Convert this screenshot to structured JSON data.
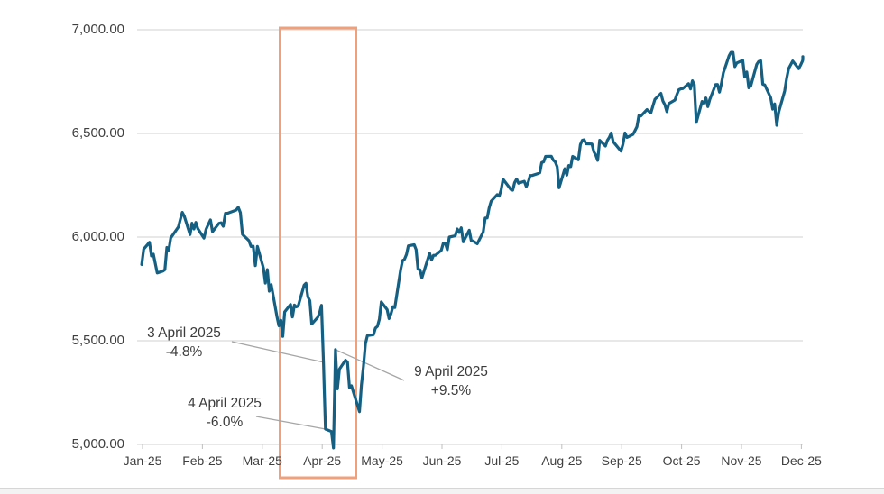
{
  "chart_data": {
    "type": "line",
    "x_axis": {
      "labels": [
        "Jan-25",
        "Feb-25",
        "Mar-25",
        "Apr-25",
        "May-25",
        "Jun-25",
        "Jul-25",
        "Aug-25",
        "Sep-25",
        "Oct-25",
        "Nov-25",
        "Dec-25"
      ]
    },
    "y_axis": {
      "min": 5000,
      "max": 7000,
      "tick_step": 500,
      "values": [
        7000,
        6500,
        6000,
        5500,
        5000
      ],
      "tick_labels": [
        "7,000.00",
        "6,500.00",
        "6,000.00",
        "5,500.00",
        "5,000.00"
      ]
    },
    "colors": {
      "line": "#156082",
      "grid": "#d9d9d9",
      "axis": "#bfbfbf",
      "leader": "#a6a6a6",
      "highlight_box": "#f0a17b",
      "label_text": "#3f3f3f"
    },
    "highlight": {
      "label": "Apr-25"
    },
    "annotations": [
      {
        "line1": "3 April 2025",
        "line2": "-4.8%",
        "target": {
          "date": "04-03",
          "value": 5396
        }
      },
      {
        "line1": "4 April 2025",
        "line2": "-6.0%",
        "target": {
          "date": "04-04",
          "value": 5074
        }
      },
      {
        "line1": "9 April 2025",
        "line2": "+9.5%",
        "target": {
          "date": "04-09",
          "value": 5457
        }
      }
    ],
    "points": [
      [
        "01-02",
        5868
      ],
      [
        "01-03",
        5942
      ],
      [
        "01-06",
        5975
      ],
      [
        "01-07",
        5909
      ],
      [
        "01-08",
        5918
      ],
      [
        "01-10",
        5827
      ],
      [
        "01-13",
        5836
      ],
      [
        "01-14",
        5843
      ],
      [
        "01-15",
        5950
      ],
      [
        "01-16",
        5937
      ],
      [
        "01-17",
        5996
      ],
      [
        "01-21",
        6049
      ],
      [
        "01-22",
        6086
      ],
      [
        "01-23",
        6119
      ],
      [
        "01-24",
        6101
      ],
      [
        "01-27",
        6012
      ],
      [
        "01-28",
        6067
      ],
      [
        "01-29",
        6039
      ],
      [
        "01-30",
        6071
      ],
      [
        "01-31",
        6041
      ],
      [
        "02-03",
        5995
      ],
      [
        "02-04",
        6038
      ],
      [
        "02-05",
        6061
      ],
      [
        "02-06",
        6083
      ],
      [
        "02-07",
        6026
      ],
      [
        "02-10",
        6066
      ],
      [
        "02-11",
        6069
      ],
      [
        "02-12",
        6052
      ],
      [
        "02-13",
        6115
      ],
      [
        "02-14",
        6115
      ],
      [
        "02-18",
        6130
      ],
      [
        "02-19",
        6144
      ],
      [
        "02-20",
        6118
      ],
      [
        "02-21",
        6013
      ],
      [
        "02-24",
        5983
      ],
      [
        "02-25",
        5955
      ],
      [
        "02-26",
        5956
      ],
      [
        "02-27",
        5862
      ],
      [
        "02-28",
        5955
      ],
      [
        "03-03",
        5850
      ],
      [
        "03-04",
        5778
      ],
      [
        "03-05",
        5843
      ],
      [
        "03-06",
        5739
      ],
      [
        "03-07",
        5770
      ],
      [
        "03-10",
        5615
      ],
      [
        "03-11",
        5572
      ],
      [
        "03-12",
        5599
      ],
      [
        "03-13",
        5521
      ],
      [
        "03-14",
        5639
      ],
      [
        "03-17",
        5675
      ],
      [
        "03-18",
        5615
      ],
      [
        "03-19",
        5672
      ],
      [
        "03-20",
        5663
      ],
      [
        "03-21",
        5668
      ],
      [
        "03-24",
        5768
      ],
      [
        "03-25",
        5777
      ],
      [
        "03-26",
        5712
      ],
      [
        "03-27",
        5693
      ],
      [
        "03-28",
        5581
      ],
      [
        "03-31",
        5612
      ],
      [
        "04-01",
        5633
      ],
      [
        "04-02",
        5671
      ],
      [
        "04-03",
        5396
      ],
      [
        "04-04",
        5074
      ],
      [
        "04-07",
        5062
      ],
      [
        "04-08",
        4983
      ],
      [
        "04-09",
        5457
      ],
      [
        "04-10",
        5268
      ],
      [
        "04-11",
        5363
      ],
      [
        "04-14",
        5406
      ],
      [
        "04-15",
        5397
      ],
      [
        "04-16",
        5275
      ],
      [
        "04-17",
        5283
      ],
      [
        "04-21",
        5158
      ],
      [
        "04-22",
        5288
      ],
      [
        "04-23",
        5376
      ],
      [
        "04-24",
        5485
      ],
      [
        "04-25",
        5525
      ],
      [
        "04-28",
        5529
      ],
      [
        "04-29",
        5561
      ],
      [
        "04-30",
        5569
      ],
      [
        "05-01",
        5604
      ],
      [
        "05-02",
        5687
      ],
      [
        "05-05",
        5650
      ],
      [
        "05-06",
        5607
      ],
      [
        "05-07",
        5631
      ],
      [
        "05-08",
        5664
      ],
      [
        "05-09",
        5660
      ],
      [
        "05-12",
        5844
      ],
      [
        "05-13",
        5887
      ],
      [
        "05-14",
        5893
      ],
      [
        "05-15",
        5916
      ],
      [
        "05-16",
        5958
      ],
      [
        "05-19",
        5963
      ],
      [
        "05-20",
        5940
      ],
      [
        "05-21",
        5845
      ],
      [
        "05-22",
        5842
      ],
      [
        "05-23",
        5803
      ],
      [
        "05-27",
        5922
      ],
      [
        "05-28",
        5889
      ],
      [
        "05-29",
        5912
      ],
      [
        "05-30",
        5912
      ],
      [
        "06-02",
        5936
      ],
      [
        "06-03",
        5970
      ],
      [
        "06-04",
        5971
      ],
      [
        "06-05",
        5939
      ],
      [
        "06-06",
        6000
      ],
      [
        "06-09",
        6006
      ],
      [
        "06-10",
        6039
      ],
      [
        "06-11",
        6022
      ],
      [
        "06-12",
        6045
      ],
      [
        "06-13",
        5977
      ],
      [
        "06-16",
        6033
      ],
      [
        "06-17",
        5983
      ],
      [
        "06-18",
        5981
      ],
      [
        "06-20",
        5968
      ],
      [
        "06-23",
        6025
      ],
      [
        "06-24",
        6092
      ],
      [
        "06-25",
        6092
      ],
      [
        "06-26",
        6141
      ],
      [
        "06-27",
        6173
      ],
      [
        "06-30",
        6205
      ],
      [
        "07-01",
        6198
      ],
      [
        "07-02",
        6227
      ],
      [
        "07-03",
        6279
      ],
      [
        "07-07",
        6230
      ],
      [
        "07-08",
        6226
      ],
      [
        "07-09",
        6263
      ],
      [
        "07-10",
        6280
      ],
      [
        "07-11",
        6260
      ],
      [
        "07-14",
        6269
      ],
      [
        "07-15",
        6244
      ],
      [
        "07-16",
        6264
      ],
      [
        "07-17",
        6297
      ],
      [
        "07-18",
        6297
      ],
      [
        "07-21",
        6306
      ],
      [
        "07-22",
        6310
      ],
      [
        "07-23",
        6359
      ],
      [
        "07-24",
        6363
      ],
      [
        "07-25",
        6389
      ],
      [
        "07-28",
        6390
      ],
      [
        "07-29",
        6371
      ],
      [
        "07-30",
        6363
      ],
      [
        "07-31",
        6339
      ],
      [
        "08-01",
        6238
      ],
      [
        "08-04",
        6330
      ],
      [
        "08-05",
        6299
      ],
      [
        "08-06",
        6345
      ],
      [
        "08-07",
        6340
      ],
      [
        "08-08",
        6389
      ],
      [
        "08-11",
        6373
      ],
      [
        "08-12",
        6446
      ],
      [
        "08-13",
        6467
      ],
      [
        "08-14",
        6469
      ],
      [
        "08-15",
        6450
      ],
      [
        "08-18",
        6449
      ],
      [
        "08-19",
        6411
      ],
      [
        "08-20",
        6395
      ],
      [
        "08-21",
        6370
      ],
      [
        "08-22",
        6467
      ],
      [
        "08-25",
        6439
      ],
      [
        "08-26",
        6466
      ],
      [
        "08-27",
        6481
      ],
      [
        "08-28",
        6502
      ],
      [
        "08-29",
        6460
      ],
      [
        "09-02",
        6415
      ],
      [
        "09-03",
        6448
      ],
      [
        "09-04",
        6502
      ],
      [
        "09-05",
        6481
      ],
      [
        "09-08",
        6495
      ],
      [
        "09-09",
        6513
      ],
      [
        "09-10",
        6532
      ],
      [
        "09-11",
        6587
      ],
      [
        "09-12",
        6584
      ],
      [
        "09-15",
        6615
      ],
      [
        "09-16",
        6606
      ],
      [
        "09-17",
        6600
      ],
      [
        "09-18",
        6632
      ],
      [
        "09-19",
        6664
      ],
      [
        "09-22",
        6693
      ],
      [
        "09-23",
        6656
      ],
      [
        "09-24",
        6638
      ],
      [
        "09-25",
        6605
      ],
      [
        "09-26",
        6644
      ],
      [
        "09-29",
        6661
      ],
      [
        "09-30",
        6688
      ],
      [
        "10-01",
        6711
      ],
      [
        "10-02",
        6715
      ],
      [
        "10-03",
        6716
      ],
      [
        "10-06",
        6740
      ],
      [
        "10-07",
        6715
      ],
      [
        "10-08",
        6754
      ],
      [
        "10-09",
        6735
      ],
      [
        "10-10",
        6553
      ],
      [
        "10-13",
        6654
      ],
      [
        "10-14",
        6645
      ],
      [
        "10-15",
        6671
      ],
      [
        "10-16",
        6629
      ],
      [
        "10-17",
        6664
      ],
      [
        "10-20",
        6735
      ],
      [
        "10-21",
        6736
      ],
      [
        "10-22",
        6699
      ],
      [
        "10-23",
        6739
      ],
      [
        "10-24",
        6792
      ],
      [
        "10-27",
        6875
      ],
      [
        "10-28",
        6891
      ],
      [
        "10-29",
        6891
      ],
      [
        "10-30",
        6822
      ],
      [
        "10-31",
        6840
      ],
      [
        "11-03",
        6852
      ],
      [
        "11-04",
        6772
      ],
      [
        "11-05",
        6796
      ],
      [
        "11-06",
        6720
      ],
      [
        "11-07",
        6729
      ],
      [
        "11-10",
        6833
      ],
      [
        "11-11",
        6847
      ],
      [
        "11-12",
        6851
      ],
      [
        "11-13",
        6737
      ],
      [
        "11-14",
        6734
      ],
      [
        "11-17",
        6672
      ],
      [
        "11-18",
        6617
      ],
      [
        "11-19",
        6642
      ],
      [
        "11-20",
        6539
      ],
      [
        "11-21",
        6603
      ],
      [
        "11-24",
        6705
      ],
      [
        "11-25",
        6766
      ],
      [
        "11-26",
        6813
      ],
      [
        "11-28",
        6849
      ],
      [
        "12-01",
        6812
      ],
      [
        "12-02",
        6829
      ],
      [
        "12-03",
        6850
      ],
      [
        "12-04",
        6857
      ],
      [
        "12-05",
        6870
      ]
    ]
  }
}
